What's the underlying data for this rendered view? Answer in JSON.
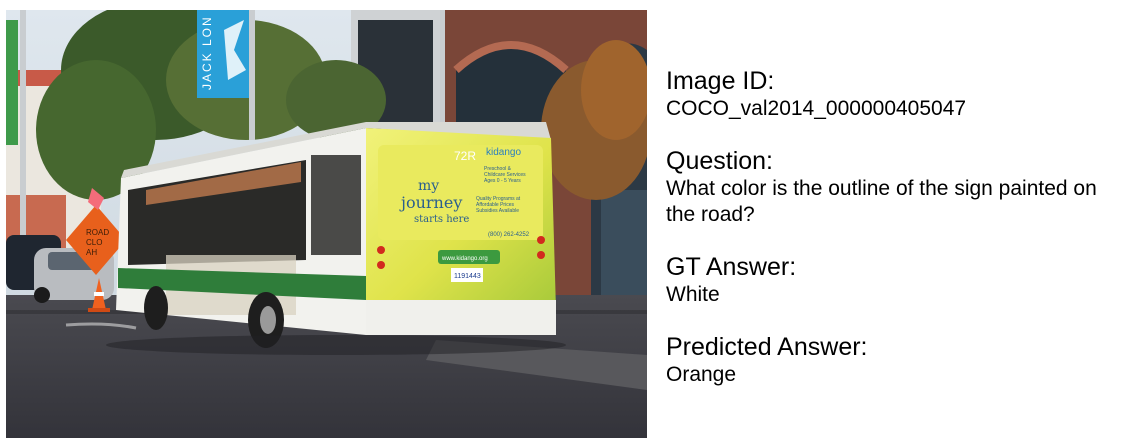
{
  "photo": {
    "description_icon": "photo-bus-street",
    "scene_text": {
      "street_banner": "JACK LON",
      "route_number": "72R",
      "ad_line_1": "my",
      "ad_line_2": "journey",
      "ad_line_3": "starts here",
      "ad_brand": "kidango",
      "ad_phone": "(800) 262-4252",
      "ad_web": "www.kidango.org",
      "ad_promo_1": "Preschool &",
      "ad_promo_2": "Childcare Services",
      "ad_promo_3": "Ages 0 - 5 Years",
      "ad_promo_4": "Quality Programs at",
      "ad_promo_5": "Affordable Prices",
      "ad_promo_6": "Subsidies Available",
      "plate": "1191443",
      "road_sign_1": "ROAD",
      "road_sign_2": "CLO",
      "road_sign_3": "AH"
    }
  },
  "info": {
    "image_id_label": "Image ID:",
    "image_id": "COCO_val2014_000000405047",
    "question_label": "Question:",
    "question": "What color is the outline of the sign painted on the road?",
    "gt_label": "GT Answer:",
    "gt_answer": "White",
    "pred_label": "Predicted Answer:",
    "pred_answer": "Orange"
  },
  "colors": {
    "bus_body": "#f2f2ee",
    "bus_stripe": "#2f7d3a",
    "ad_yellow": "#e7e84a",
    "ad_blue": "#5cb6d9",
    "banner_blue": "#2aa0d8",
    "brick": "#7a4638",
    "road": "#3d3d42",
    "sign_orange": "#e8601c"
  }
}
